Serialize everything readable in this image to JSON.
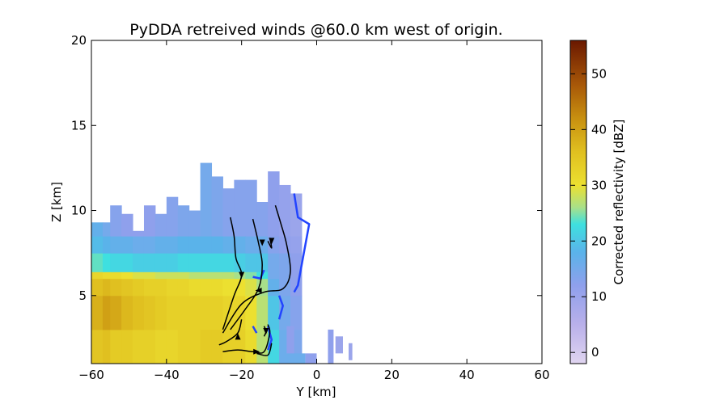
{
  "chart_data": {
    "type": "heatmap",
    "title": "PyDDA retreived winds @60.0 km west of origin.",
    "xlabel": "Y [km]",
    "ylabel": "Z [km]",
    "xlim": [
      -60,
      60
    ],
    "ylim": [
      1,
      20
    ],
    "xticks": [
      -60,
      -40,
      -20,
      0,
      20,
      40,
      60
    ],
    "yticks": [
      5,
      10,
      15,
      20
    ],
    "colorbar": {
      "label": "Corrected reflectivity [dBZ]",
      "range": [
        -2,
        56
      ],
      "ticks": [
        0,
        10,
        20,
        30,
        40,
        50
      ],
      "colormap": [
        {
          "value": -2,
          "color": "#e0d5f0"
        },
        {
          "value": 5,
          "color": "#b9b0ea"
        },
        {
          "value": 12,
          "color": "#8fa0ec"
        },
        {
          "value": 18,
          "color": "#5ab3ea"
        },
        {
          "value": 23,
          "color": "#3ee0e0"
        },
        {
          "value": 26,
          "color": "#a8e08a"
        },
        {
          "value": 30,
          "color": "#ece030"
        },
        {
          "value": 36,
          "color": "#e0c020"
        },
        {
          "value": 42,
          "color": "#c89010"
        },
        {
          "value": 48,
          "color": "#a85808"
        },
        {
          "value": 56,
          "color": "#6a1800"
        }
      ]
    },
    "reflectivity_columns": [
      {
        "y": -60,
        "top": 9.3,
        "base": [
          {
            "z": 1,
            "dbz": 35
          },
          {
            "z": 3,
            "dbz": 38
          },
          {
            "z": 5,
            "dbz": 36
          },
          {
            "z": 6,
            "dbz": 32
          },
          {
            "z": 6.4,
            "dbz": 24
          },
          {
            "z": 7.5,
            "dbz": 19
          },
          {
            "z": 8.5,
            "dbz": 17
          }
        ]
      },
      {
        "y": -57,
        "top": 9.3,
        "base": [
          {
            "z": 1,
            "dbz": 36
          },
          {
            "z": 3,
            "dbz": 40
          },
          {
            "z": 5,
            "dbz": 37
          },
          {
            "z": 6,
            "dbz": 31
          },
          {
            "z": 6.4,
            "dbz": 23
          },
          {
            "z": 7.5,
            "dbz": 18
          },
          {
            "z": 8.5,
            "dbz": 15
          }
        ]
      },
      {
        "y": -55,
        "top": 10.3,
        "base": [
          {
            "z": 1,
            "dbz": 34
          },
          {
            "z": 3,
            "dbz": 39
          },
          {
            "z": 5,
            "dbz": 36
          },
          {
            "z": 6,
            "dbz": 31
          },
          {
            "z": 6.4,
            "dbz": 22
          },
          {
            "z": 7.5,
            "dbz": 17
          },
          {
            "z": 8.5,
            "dbz": 13
          }
        ]
      },
      {
        "y": -52,
        "top": 9.8,
        "base": [
          {
            "z": 1,
            "dbz": 34
          },
          {
            "z": 3,
            "dbz": 37
          },
          {
            "z": 5,
            "dbz": 35
          },
          {
            "z": 6,
            "dbz": 30
          },
          {
            "z": 6.4,
            "dbz": 22
          },
          {
            "z": 7.5,
            "dbz": 17
          },
          {
            "z": 8.5,
            "dbz": 12
          }
        ]
      },
      {
        "y": -49,
        "top": 8.8,
        "base": [
          {
            "z": 1,
            "dbz": 33
          },
          {
            "z": 3,
            "dbz": 36
          },
          {
            "z": 5,
            "dbz": 34
          },
          {
            "z": 6,
            "dbz": 29
          },
          {
            "z": 6.4,
            "dbz": 21
          },
          {
            "z": 7.5,
            "dbz": 16
          },
          {
            "z": 8.5,
            "dbz": 12
          }
        ]
      },
      {
        "y": -46,
        "top": 10.3,
        "base": [
          {
            "z": 1,
            "dbz": 33
          },
          {
            "z": 3,
            "dbz": 35
          },
          {
            "z": 5,
            "dbz": 33
          },
          {
            "z": 6,
            "dbz": 29
          },
          {
            "z": 6.4,
            "dbz": 21
          },
          {
            "z": 7.5,
            "dbz": 16
          },
          {
            "z": 8.5,
            "dbz": 12
          }
        ]
      },
      {
        "y": -43,
        "top": 9.8,
        "base": [
          {
            "z": 1,
            "dbz": 32
          },
          {
            "z": 3,
            "dbz": 34
          },
          {
            "z": 5,
            "dbz": 33
          },
          {
            "z": 6,
            "dbz": 28
          },
          {
            "z": 6.4,
            "dbz": 21
          },
          {
            "z": 7.5,
            "dbz": 17
          },
          {
            "z": 8.5,
            "dbz": 13
          }
        ]
      },
      {
        "y": -40,
        "top": 10.8,
        "base": [
          {
            "z": 1,
            "dbz": 32
          },
          {
            "z": 3,
            "dbz": 33
          },
          {
            "z": 5,
            "dbz": 32
          },
          {
            "z": 6,
            "dbz": 28
          },
          {
            "z": 6.4,
            "dbz": 21
          },
          {
            "z": 7.5,
            "dbz": 17
          },
          {
            "z": 8.5,
            "dbz": 13
          }
        ]
      },
      {
        "y": -37,
        "top": 10.3,
        "base": [
          {
            "z": 1,
            "dbz": 33
          },
          {
            "z": 3,
            "dbz": 33
          },
          {
            "z": 5,
            "dbz": 32
          },
          {
            "z": 6,
            "dbz": 28
          },
          {
            "z": 6.4,
            "dbz": 22
          },
          {
            "z": 7.5,
            "dbz": 18
          },
          {
            "z": 8.5,
            "dbz": 14
          }
        ]
      },
      {
        "y": -34,
        "top": 10.0,
        "base": [
          {
            "z": 1,
            "dbz": 33
          },
          {
            "z": 3,
            "dbz": 33
          },
          {
            "z": 5,
            "dbz": 31
          },
          {
            "z": 6,
            "dbz": 27
          },
          {
            "z": 6.4,
            "dbz": 22
          },
          {
            "z": 7.5,
            "dbz": 18
          },
          {
            "z": 8.5,
            "dbz": 14
          }
        ]
      },
      {
        "y": -31,
        "top": 12.8,
        "base": [
          {
            "z": 1,
            "dbz": 34
          },
          {
            "z": 3,
            "dbz": 33
          },
          {
            "z": 5,
            "dbz": 31
          },
          {
            "z": 6,
            "dbz": 27
          },
          {
            "z": 6.4,
            "dbz": 22
          },
          {
            "z": 7.5,
            "dbz": 18
          },
          {
            "z": 8.5,
            "dbz": 15
          }
        ]
      },
      {
        "y": -28,
        "top": 12.0,
        "base": [
          {
            "z": 1,
            "dbz": 34
          },
          {
            "z": 3,
            "dbz": 33
          },
          {
            "z": 5,
            "dbz": 31
          },
          {
            "z": 6,
            "dbz": 27
          },
          {
            "z": 6.4,
            "dbz": 22
          },
          {
            "z": 7.5,
            "dbz": 18
          },
          {
            "z": 8.5,
            "dbz": 14
          }
        ]
      },
      {
        "y": -25,
        "top": 11.3,
        "base": [
          {
            "z": 1,
            "dbz": 33
          },
          {
            "z": 3,
            "dbz": 32
          },
          {
            "z": 5,
            "dbz": 30
          },
          {
            "z": 6,
            "dbz": 27
          },
          {
            "z": 6.4,
            "dbz": 22
          },
          {
            "z": 7.5,
            "dbz": 17
          },
          {
            "z": 8.5,
            "dbz": 13
          }
        ]
      },
      {
        "y": -22,
        "top": 11.8,
        "base": [
          {
            "z": 1,
            "dbz": 33
          },
          {
            "z": 3,
            "dbz": 32
          },
          {
            "z": 5,
            "dbz": 30
          },
          {
            "z": 6,
            "dbz": 26
          },
          {
            "z": 6.4,
            "dbz": 21
          },
          {
            "z": 7.5,
            "dbz": 17
          },
          {
            "z": 8.5,
            "dbz": 13
          }
        ]
      },
      {
        "y": -19,
        "top": 11.8,
        "base": [
          {
            "z": 1,
            "dbz": 31
          },
          {
            "z": 3,
            "dbz": 30
          },
          {
            "z": 5,
            "dbz": 29
          },
          {
            "z": 6,
            "dbz": 25
          },
          {
            "z": 6.4,
            "dbz": 20
          },
          {
            "z": 7.5,
            "dbz": 16
          },
          {
            "z": 8.5,
            "dbz": 13
          }
        ]
      },
      {
        "y": -16,
        "top": 10.5,
        "base": [
          {
            "z": 1,
            "dbz": 27
          },
          {
            "z": 3,
            "dbz": 27
          },
          {
            "z": 5,
            "dbz": 26
          },
          {
            "z": 6,
            "dbz": 23
          },
          {
            "z": 6.4,
            "dbz": 20
          },
          {
            "z": 7.5,
            "dbz": 16
          },
          {
            "z": 8.5,
            "dbz": 13
          }
        ]
      },
      {
        "y": -13,
        "top": 12.3,
        "base": [
          {
            "z": 1,
            "dbz": 22
          },
          {
            "z": 3,
            "dbz": 20
          },
          {
            "z": 5,
            "dbz": 17
          },
          {
            "z": 6,
            "dbz": 15
          },
          {
            "z": 7.5,
            "dbz": 13
          },
          {
            "z": 8.5,
            "dbz": 12
          }
        ]
      },
      {
        "y": -10,
        "top": 11.5,
        "base": [
          {
            "z": 1,
            "dbz": 16
          },
          {
            "z": 3,
            "dbz": 15
          },
          {
            "z": 5,
            "dbz": 14
          },
          {
            "z": 7.5,
            "dbz": 12
          },
          {
            "z": 8.5,
            "dbz": 11
          }
        ]
      },
      {
        "y": -7,
        "top": 11.0,
        "base": [
          {
            "z": 1,
            "dbz": 14
          },
          {
            "z": 3,
            "dbz": 13
          },
          {
            "z": 5,
            "dbz": 12
          },
          {
            "z": 7.5,
            "dbz": 11
          },
          {
            "z": 8.5,
            "dbz": 10
          }
        ]
      }
    ],
    "isolated_cells": [
      {
        "y": [
          -8,
          -3
        ],
        "z": [
          1,
          1.6
        ],
        "dbz": 16
      },
      {
        "y": [
          -3,
          0
        ],
        "z": [
          1,
          1.6
        ],
        "dbz": 12
      },
      {
        "y": [
          3,
          4.5
        ],
        "z": [
          1,
          3.0
        ],
        "dbz": 12
      },
      {
        "y": [
          5,
          7
        ],
        "z": [
          1.6,
          2.6
        ],
        "dbz": 10
      },
      {
        "y": [
          8.5,
          9.5
        ],
        "z": [
          1.2,
          2.2
        ],
        "dbz": 10
      },
      {
        "y": [
          -8,
          -6
        ],
        "z": [
          1.6,
          3.2
        ],
        "dbz": 12
      }
    ],
    "contour_color": "#2244ff",
    "contours": [
      [
        [
          -6,
          11.0
        ],
        [
          -5,
          9.6
        ],
        [
          -2,
          9.2
        ],
        [
          -3,
          8.0
        ],
        [
          -4,
          6.8
        ],
        [
          -5,
          5.6
        ],
        [
          -6,
          5.2
        ]
      ],
      [
        [
          -10,
          5.0
        ],
        [
          -9,
          4.4
        ],
        [
          -10,
          3.6
        ]
      ],
      [
        [
          -17,
          6.1
        ],
        [
          -15,
          6.0
        ],
        [
          -14,
          6.5
        ]
      ],
      [
        [
          -13,
          3.2
        ],
        [
          -12,
          2.4
        ],
        [
          -13,
          1.8
        ]
      ],
      [
        [
          -17,
          3.2
        ],
        [
          -16,
          2.8
        ]
      ]
    ],
    "streamlines": [
      [
        [
          -23,
          9.6
        ],
        [
          -22,
          8.5
        ],
        [
          -21.5,
          7.2
        ],
        [
          -20,
          6.2
        ],
        [
          -22,
          5.0
        ],
        [
          -25,
          3.0
        ]
      ],
      [
        [
          -17,
          9.5
        ],
        [
          -15.5,
          8.1
        ],
        [
          -14.5,
          6.8
        ],
        [
          -15.5,
          5.4
        ],
        [
          -19,
          4.2
        ],
        [
          -23,
          3.0
        ]
      ],
      [
        [
          -11,
          10.3
        ],
        [
          -9.5,
          9.2
        ],
        [
          -8,
          8.0
        ],
        [
          -7,
          6.4
        ],
        [
          -9,
          5.4
        ],
        [
          -14,
          5.2
        ],
        [
          -20,
          4.5
        ],
        [
          -25,
          2.8
        ]
      ],
      [
        [
          -13,
          8.2
        ],
        [
          -12,
          7.8
        ],
        [
          -12.5,
          8.4
        ]
      ],
      [
        [
          -20,
          3.6
        ],
        [
          -21,
          2.8
        ],
        [
          -24,
          2.3
        ],
        [
          -26,
          2.1
        ]
      ],
      [
        [
          -13,
          3.3
        ],
        [
          -12.5,
          2.8
        ],
        [
          -14,
          1.7
        ],
        [
          -17,
          1.7
        ],
        [
          -21,
          1.8
        ],
        [
          -25,
          1.7
        ]
      ],
      [
        [
          -12,
          2.2
        ],
        [
          -13,
          1.5
        ],
        [
          -16,
          1.6
        ]
      ],
      [
        [
          -14,
          3.2
        ],
        [
          -13.5,
          2.9
        ],
        [
          -14,
          2.6
        ]
      ]
    ],
    "arrowheads": [
      {
        "y": -20,
        "z": 6.2,
        "dir": "down"
      },
      {
        "y": -14.5,
        "z": 8.1,
        "dir": "down"
      },
      {
        "y": -12,
        "z": 8.2,
        "dir": "down"
      },
      {
        "y": -15.5,
        "z": 5.3,
        "dir": "left"
      },
      {
        "y": -21,
        "z": 2.6,
        "dir": "up"
      },
      {
        "y": -13.5,
        "z": 2.9,
        "dir": "down"
      },
      {
        "y": -16,
        "z": 1.7,
        "dir": "right"
      }
    ]
  }
}
